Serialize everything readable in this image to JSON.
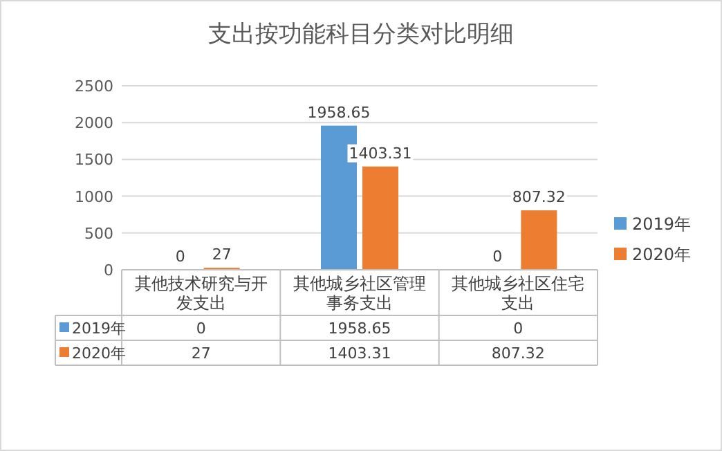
{
  "chart_data": {
    "type": "bar",
    "title": "支出按功能科目分类对比明细",
    "categories": [
      "其他技术研究与开发支出",
      "其他城乡社区管理事务支出",
      "其他城乡社区住宅支出"
    ],
    "series": [
      {
        "name": "2019年",
        "color": "#5b9bd5",
        "values": [
          0,
          1958.65,
          0
        ],
        "value_labels": [
          "0",
          "1958.65",
          "0"
        ]
      },
      {
        "name": "2020年",
        "color": "#ed7d31",
        "values": [
          27,
          1403.31,
          807.32
        ],
        "value_labels": [
          "27",
          "1403.31",
          "807.32"
        ]
      }
    ],
    "ylim": [
      0,
      2500
    ],
    "yticks": [
      0,
      500,
      1000,
      1500,
      2000,
      2500
    ],
    "grid": "y",
    "legend": "right",
    "data_labels": true
  }
}
